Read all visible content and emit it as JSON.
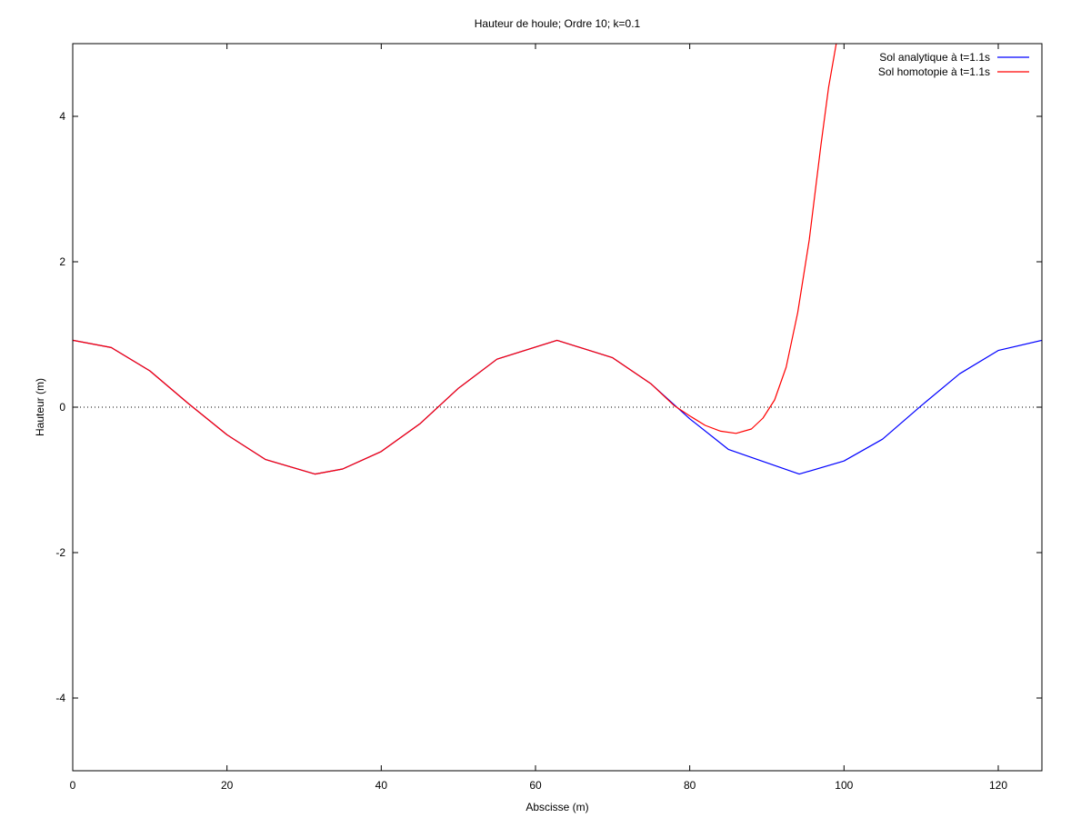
{
  "chart_data": {
    "type": "line",
    "title": "Hauteur de houle; Ordre 10; k=0.1",
    "xlabel": "Abscisse (m)",
    "ylabel": "Hauteur (m)",
    "xlim": [
      0,
      125.66
    ],
    "ylim": [
      -5,
      5
    ],
    "x_ticks": [
      0,
      20,
      40,
      60,
      80,
      100,
      120
    ],
    "y_ticks": [
      -4,
      -2,
      0,
      2,
      4
    ],
    "zero_line": true,
    "grid": false,
    "legend_position": "top-right",
    "series": [
      {
        "name": "Sol analytique à t=1.1s",
        "color": "#0000ff",
        "x": [
          0,
          5,
          10,
          15,
          20,
          25,
          31.4,
          35,
          40,
          45,
          50,
          55,
          62.8,
          70,
          75,
          80,
          85,
          94.2,
          100,
          105,
          110,
          115,
          120,
          125.66
        ],
        "y": [
          0.92,
          0.82,
          0.5,
          0.05,
          -0.38,
          -0.72,
          -0.92,
          -0.85,
          -0.61,
          -0.23,
          0.26,
          0.66,
          0.92,
          0.68,
          0.32,
          -0.16,
          -0.58,
          -0.92,
          -0.74,
          -0.44,
          0.02,
          0.46,
          0.78,
          0.92
        ]
      },
      {
        "name": "Sol homotopie à t=1.1s",
        "color": "#ff0000",
        "x": [
          0,
          5,
          10,
          15,
          20,
          25,
          31.4,
          35,
          40,
          45,
          50,
          55,
          62.8,
          70,
          75,
          78,
          80,
          82,
          84,
          86,
          88,
          89.5,
          91,
          92.5,
          94,
          95.5,
          97,
          98,
          99
        ],
        "y": [
          0.92,
          0.82,
          0.5,
          0.05,
          -0.38,
          -0.72,
          -0.92,
          -0.85,
          -0.61,
          -0.23,
          0.26,
          0.66,
          0.92,
          0.68,
          0.32,
          0.02,
          -0.12,
          -0.25,
          -0.33,
          -0.36,
          -0.3,
          -0.15,
          0.1,
          0.55,
          1.3,
          2.3,
          3.6,
          4.4,
          5.0
        ]
      }
    ]
  }
}
